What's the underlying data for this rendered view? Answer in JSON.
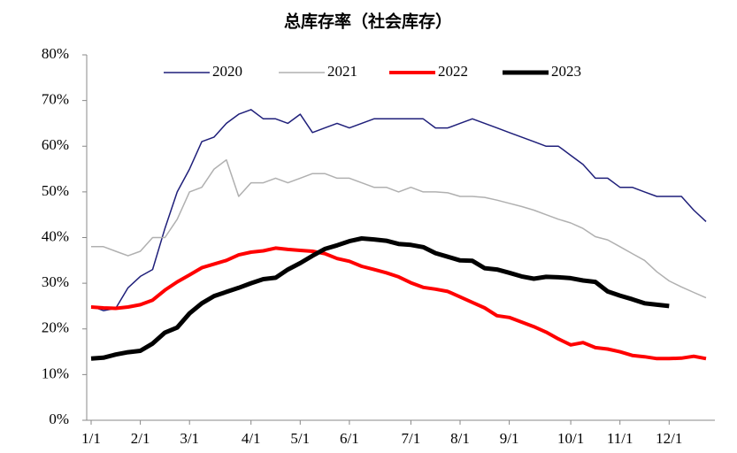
{
  "chart_data": {
    "type": "line",
    "title": "总库存率（社会库存）",
    "categories": [
      "1/1",
      null,
      null,
      null,
      "2/1",
      null,
      null,
      null,
      "3/1",
      null,
      null,
      null,
      null,
      "4/1",
      null,
      null,
      null,
      "5/1",
      null,
      null,
      null,
      "6/1",
      null,
      null,
      null,
      null,
      "7/1",
      null,
      null,
      null,
      "8/1",
      null,
      null,
      null,
      "9/1",
      null,
      null,
      null,
      null,
      "10/1",
      null,
      null,
      null,
      "11/1",
      null,
      null,
      null,
      "12/1",
      null,
      null,
      null
    ],
    "series": [
      {
        "name": "2020",
        "color": "#1f1f7a",
        "width": 1.5,
        "values": [
          25,
          24,
          24.5,
          29,
          31.5,
          33,
          42,
          50,
          55,
          61,
          62,
          65,
          67,
          68,
          66,
          66,
          65,
          67,
          63,
          64,
          65,
          64,
          65,
          66,
          66,
          66,
          66,
          66,
          64,
          64,
          65,
          66,
          65,
          64,
          63,
          62,
          61,
          60,
          60,
          58,
          56,
          53,
          53,
          51,
          51,
          50,
          49,
          49,
          49,
          46,
          43.5
        ]
      },
      {
        "name": "2021",
        "color": "#b0b0b0",
        "width": 1.5,
        "values": [
          38,
          38,
          37,
          36,
          37,
          40,
          40,
          44,
          50,
          51,
          55,
          57,
          49,
          52,
          52,
          53,
          52,
          53,
          54,
          54,
          53,
          53,
          52,
          51,
          51,
          50,
          51,
          50,
          50,
          49.8,
          49,
          49,
          48.8,
          48.2,
          47.5,
          46.8,
          46,
          45,
          44,
          43.2,
          42,
          40.2,
          39.5,
          38,
          36.5,
          35,
          32.5,
          30.5,
          29.2,
          28,
          26.8
        ]
      },
      {
        "name": "2022",
        "color": "#ff0000",
        "width": 4,
        "values": [
          24.8,
          24.6,
          24.5,
          24.8,
          25.3,
          26.3,
          28.5,
          30.3,
          31.8,
          33.4,
          34.2,
          35,
          36.2,
          36.8,
          37.1,
          37.7,
          37.4,
          37.2,
          37,
          36.5,
          35.4,
          34.8,
          33.7,
          33,
          32.3,
          31.4,
          30.1,
          29.1,
          28.7,
          28.2,
          27,
          25.8,
          24.6,
          22.9,
          22.5,
          21.5,
          20.5,
          19.3,
          17.8,
          16.5,
          17,
          15.9,
          15.6,
          15,
          14.2,
          13.9,
          13.5,
          13.5,
          13.6,
          14,
          13.5
        ]
      },
      {
        "name": "2023",
        "color": "#000000",
        "width": 5,
        "values": [
          13.5,
          13.7,
          14.4,
          14.9,
          15.2,
          16.8,
          19.2,
          20.3,
          23.4,
          25.6,
          27.2,
          28.1,
          29,
          30,
          30.9,
          31.2,
          33,
          34.4,
          36,
          37.5,
          38.3,
          39.2,
          39.8,
          39.6,
          39.3,
          38.6,
          38.4,
          37.9,
          36.6,
          35.8,
          35,
          34.9,
          33.3,
          33,
          32.3,
          31.5,
          31,
          31.4,
          31.3,
          31.1,
          30.6,
          30.3,
          28.2,
          27.3,
          26.5,
          25.6,
          25.3,
          25,
          null,
          null,
          null
        ]
      }
    ],
    "ylim": [
      0,
      80
    ],
    "yticks": [
      {
        "value": 0,
        "label": "0%"
      },
      {
        "value": 10,
        "label": "10%"
      },
      {
        "value": 20,
        "label": "20%"
      },
      {
        "value": 30,
        "label": "30%"
      },
      {
        "value": 40,
        "label": "40%"
      },
      {
        "value": 50,
        "label": "50%"
      },
      {
        "value": 60,
        "label": "60%"
      },
      {
        "value": 70,
        "label": "70%"
      },
      {
        "value": 80,
        "label": "80%"
      }
    ],
    "legend": "top",
    "grid": false
  }
}
